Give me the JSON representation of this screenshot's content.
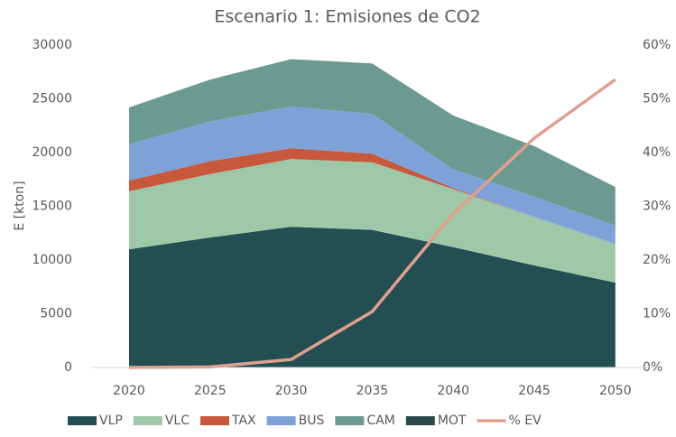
{
  "chart_data": {
    "type": "stacked_area",
    "title": "Escenario 1: Emisiones de CO2",
    "y_label": "E [kton]",
    "categories": [
      "2020",
      "2025",
      "2030",
      "2035",
      "2040",
      "2045",
      "2050"
    ],
    "series": [
      {
        "name": "VLP",
        "color": "#234e52",
        "values": [
          11000,
          12100,
          13100,
          12800,
          11200,
          9500,
          7900
        ]
      },
      {
        "name": "VLC",
        "color": "#9fc8a8",
        "values": [
          5400,
          5900,
          6300,
          6300,
          5400,
          4500,
          3600
        ]
      },
      {
        "name": "TAX",
        "color": "#c8583c",
        "values": [
          1000,
          1200,
          1000,
          800,
          100,
          0,
          0
        ]
      },
      {
        "name": "BUS",
        "color": "#7ea2d8",
        "values": [
          3400,
          3700,
          3900,
          3700,
          1750,
          1900,
          1700
        ]
      },
      {
        "name": "CAM",
        "color": "#6a9a90",
        "values": [
          3400,
          3900,
          4400,
          4700,
          5000,
          4700,
          3600
        ]
      },
      {
        "name": "MOT",
        "color": "#2d4a4a",
        "values": [
          0,
          0,
          0,
          0,
          0,
          0,
          0
        ]
      },
      {
        "name": "% EV",
        "color": "#e0a090",
        "type": "line",
        "axis": "y2",
        "values": [
          0,
          0.1,
          1.5,
          10.4,
          28.6,
          42.7,
          53.6
        ]
      }
    ],
    "ylim": [
      0,
      30000
    ],
    "yticks": [
      0,
      5000,
      10000,
      15000,
      20000,
      25000,
      30000
    ],
    "y2lim": [
      0,
      60
    ],
    "y2ticks": [
      {
        "value": 0,
        "label": "0%"
      },
      {
        "value": 10,
        "label": "10%"
      },
      {
        "value": 20,
        "label": "20%"
      },
      {
        "value": 30,
        "label": "30%"
      },
      {
        "value": 40,
        "label": "40%"
      },
      {
        "value": 50,
        "label": "50%"
      },
      {
        "value": 60,
        "label": "60%"
      }
    ],
    "legend": "bottom"
  }
}
